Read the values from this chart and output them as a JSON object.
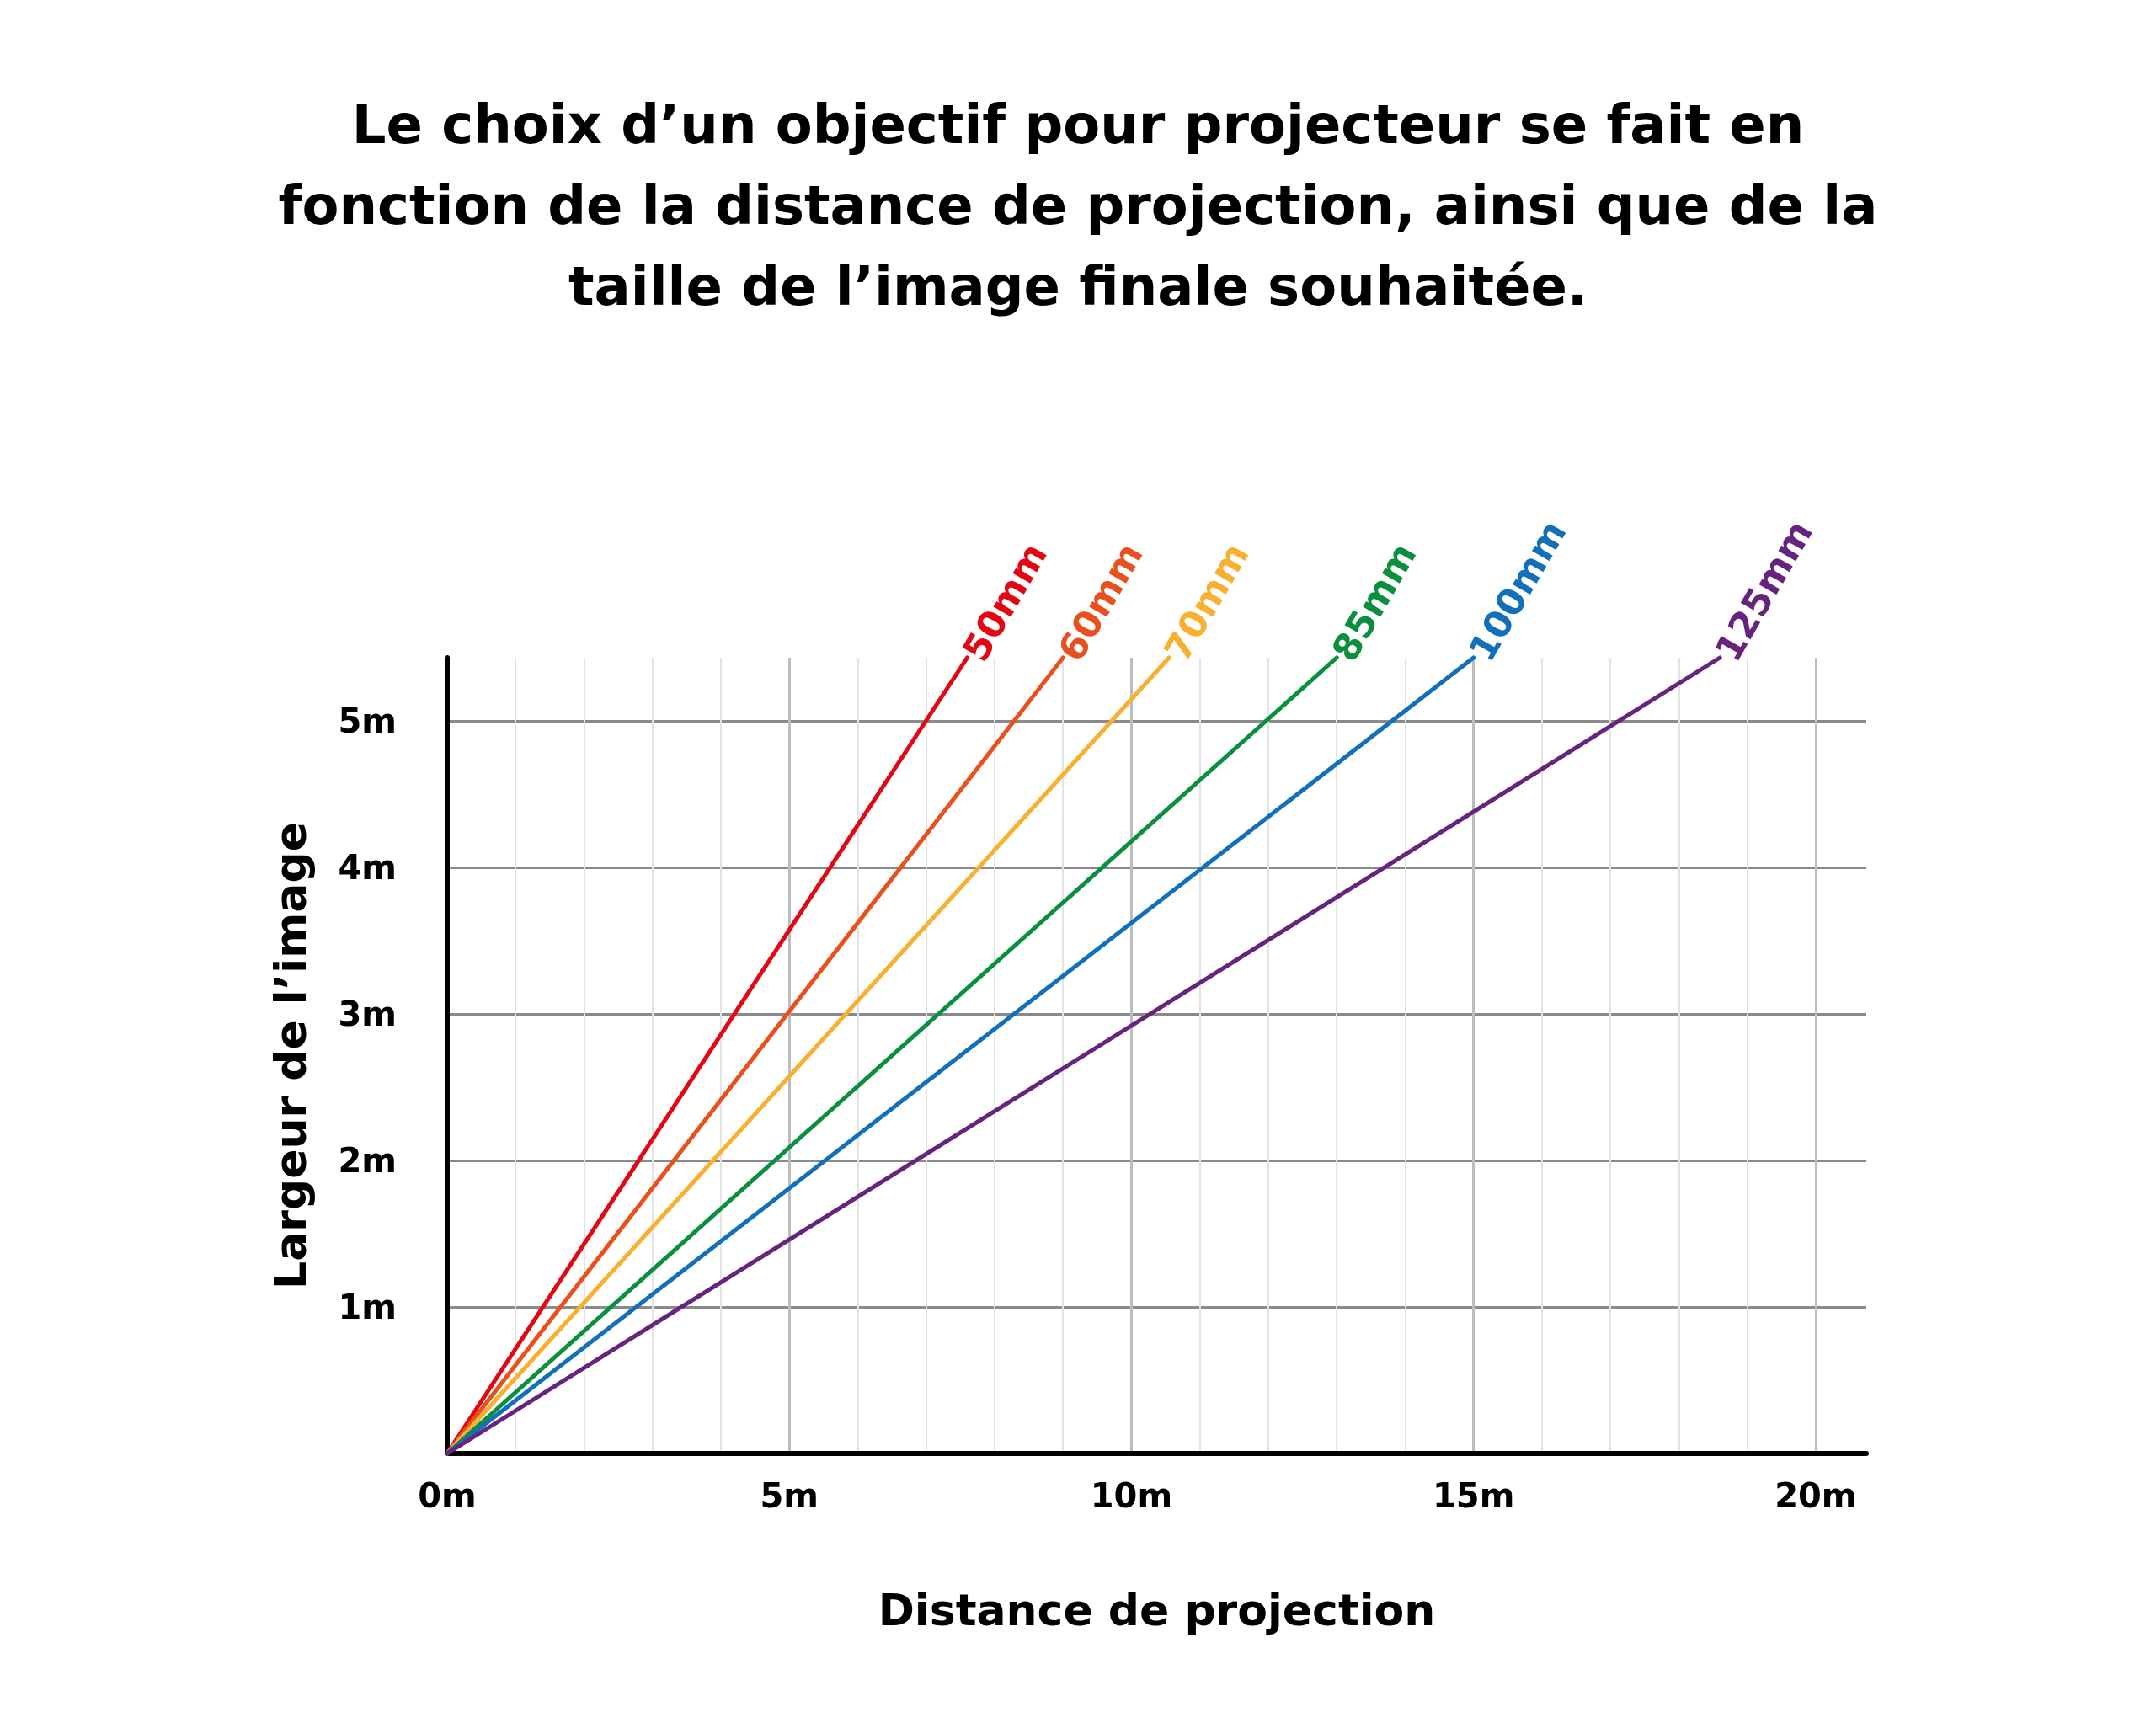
{
  "chart_data": {
    "type": "line",
    "title": "Le choix d’un objectif pour projecteur se fait en\nfonction de la distance de projection, ainsi que de la\ntaille de l’image finale souhaitée.",
    "xlabel": "Distance de projection",
    "ylabel": "Largeur de l’image",
    "series": [
      {
        "name": "50mm",
        "color": "#e30613",
        "x": [
          0,
          7.6
        ],
        "values": [
          0,
          5.43
        ]
      },
      {
        "name": "60mm",
        "color": "#e8501d",
        "x": [
          0,
          9.0
        ],
        "values": [
          0,
          5.43
        ]
      },
      {
        "name": "70mm",
        "color": "#f7b030",
        "x": [
          0,
          10.55
        ],
        "values": [
          0,
          5.43
        ]
      },
      {
        "name": "85mm",
        "color": "#0a8f3c",
        "x": [
          0,
          13.0
        ],
        "values": [
          0,
          5.43
        ]
      },
      {
        "name": "100mm",
        "color": "#1370b8",
        "x": [
          0,
          15.0
        ],
        "values": [
          0,
          5.43
        ]
      },
      {
        "name": "125mm",
        "color": "#66247f",
        "x": [
          0,
          18.6
        ],
        "values": [
          0,
          5.43
        ]
      }
    ],
    "xlim": [
      0,
      20.74
    ],
    "ylim": [
      0,
      5.43
    ],
    "xticks": [
      {
        "value": 0,
        "label": "0m"
      },
      {
        "value": 5,
        "label": "5m"
      },
      {
        "value": 10,
        "label": "10m"
      },
      {
        "value": 15,
        "label": "15m"
      },
      {
        "value": 20,
        "label": "20m"
      }
    ],
    "yticks": [
      {
        "value": 1,
        "label": "1m"
      },
      {
        "value": 2,
        "label": "2m"
      },
      {
        "value": 3,
        "label": "3m"
      },
      {
        "value": 4,
        "label": "4m"
      },
      {
        "value": 5,
        "label": "5m"
      }
    ],
    "grid": true,
    "legend": false,
    "marker": "none",
    "line_style": "solid"
  }
}
